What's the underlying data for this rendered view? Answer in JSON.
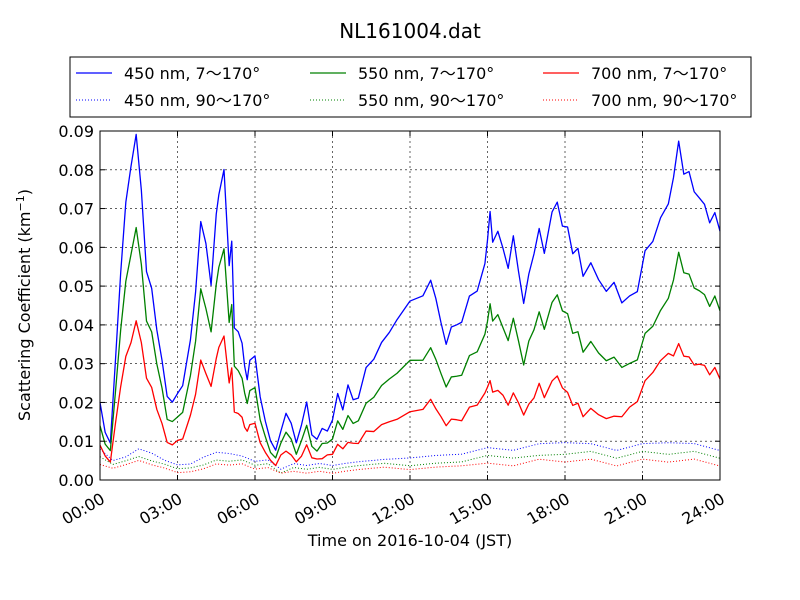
{
  "chart_data": {
    "type": "line",
    "title": "NL161004.dat",
    "xlabel": "Time on 2016-10-04 (JST)",
    "ylabel_main": "Scattering Coefficient (km",
    "ylabel_sup": "−1",
    "ylabel_close": ")",
    "xlim_hours": [
      0,
      24
    ],
    "ylim": [
      0,
      0.09
    ],
    "x_ticks": [
      {
        "hour": 0,
        "label": "00:00"
      },
      {
        "hour": 3,
        "label": "03:00"
      },
      {
        "hour": 6,
        "label": "06:00"
      },
      {
        "hour": 9,
        "label": "09:00"
      },
      {
        "hour": 12,
        "label": "12:00"
      },
      {
        "hour": 15,
        "label": "15:00"
      },
      {
        "hour": 18,
        "label": "18:00"
      },
      {
        "hour": 21,
        "label": "21:00"
      },
      {
        "hour": 24,
        "label": "24:00"
      }
    ],
    "y_ticks": [
      {
        "value": 0.0,
        "label": "0.00"
      },
      {
        "value": 0.01,
        "label": "0.01"
      },
      {
        "value": 0.02,
        "label": "0.02"
      },
      {
        "value": 0.03,
        "label": "0.03"
      },
      {
        "value": 0.04,
        "label": "0.04"
      },
      {
        "value": 0.05,
        "label": "0.05"
      },
      {
        "value": 0.06,
        "label": "0.06"
      },
      {
        "value": 0.07,
        "label": "0.07"
      },
      {
        "value": 0.08,
        "label": "0.08"
      },
      {
        "value": 0.09,
        "label": "0.09"
      }
    ],
    "grid": true,
    "legend_placement": "top, above plot",
    "series": [
      {
        "name": "450 nm, 7～170°",
        "color": "#0000ff",
        "style": "solid",
        "x": [
          0,
          0.2,
          0.4,
          0.6,
          0.8,
          1.0,
          1.2,
          1.4,
          1.6,
          1.8,
          2.0,
          2.2,
          2.4,
          2.6,
          2.8,
          3.0,
          3.2,
          3.5,
          3.7,
          3.9,
          4.1,
          4.3,
          4.5,
          4.6,
          4.8,
          5.0,
          5.1,
          5.2,
          5.35,
          5.5,
          5.6,
          5.7,
          5.8,
          6.0,
          6.2,
          6.4,
          6.6,
          6.8,
          7.0,
          7.2,
          7.4,
          7.6,
          7.8,
          8.0,
          8.2,
          8.4,
          8.6,
          8.8,
          9.0,
          9.2,
          9.4,
          9.6,
          9.8,
          10.0,
          10.3,
          10.6,
          10.9,
          11.2,
          11.5,
          12.0,
          12.5,
          12.8,
          13.0,
          13.2,
          13.4,
          13.6,
          13.8,
          14.0,
          14.3,
          14.6,
          14.9,
          15.0,
          15.1,
          15.2,
          15.4,
          15.6,
          15.8,
          16.0,
          16.2,
          16.4,
          16.6,
          16.8,
          17.0,
          17.2,
          17.5,
          17.7,
          17.9,
          18.1,
          18.3,
          18.5,
          18.7,
          19.0,
          19.3,
          19.6,
          19.9,
          20.2,
          20.5,
          20.8,
          21.1,
          21.4,
          21.7,
          22.0,
          22.2,
          22.4,
          22.6,
          22.8,
          23.0,
          23.2,
          23.4,
          23.6,
          23.8,
          24.0
        ],
        "y": [
          0.02,
          0.012,
          0.01,
          0.03,
          0.055,
          0.07,
          0.082,
          0.089,
          0.074,
          0.055,
          0.048,
          0.04,
          0.03,
          0.022,
          0.02,
          0.022,
          0.025,
          0.035,
          0.05,
          0.065,
          0.062,
          0.05,
          0.068,
          0.075,
          0.078,
          0.057,
          0.06,
          0.04,
          0.038,
          0.035,
          0.03,
          0.025,
          0.032,
          0.031,
          0.022,
          0.015,
          0.01,
          0.008,
          0.012,
          0.018,
          0.014,
          0.01,
          0.014,
          0.02,
          0.012,
          0.01,
          0.014,
          0.012,
          0.016,
          0.022,
          0.018,
          0.025,
          0.02,
          0.022,
          0.028,
          0.032,
          0.035,
          0.038,
          0.042,
          0.045,
          0.049,
          0.05,
          0.048,
          0.04,
          0.035,
          0.04,
          0.039,
          0.042,
          0.046,
          0.05,
          0.055,
          0.062,
          0.07,
          0.06,
          0.066,
          0.058,
          0.056,
          0.062,
          0.054,
          0.046,
          0.052,
          0.06,
          0.063,
          0.06,
          0.068,
          0.072,
          0.066,
          0.064,
          0.06,
          0.058,
          0.054,
          0.055,
          0.052,
          0.049,
          0.05,
          0.047,
          0.046,
          0.05,
          0.058,
          0.062,
          0.068,
          0.07,
          0.08,
          0.085,
          0.081,
          0.078,
          0.075,
          0.073,
          0.07,
          0.068,
          0.067,
          0.066
        ]
      },
      {
        "name": "450 nm, 90～170°",
        "color": "#0000ff",
        "style": "dotted",
        "x": [
          0,
          0.5,
          1.0,
          1.5,
          2.0,
          2.5,
          3.0,
          3.5,
          4.0,
          4.5,
          5.0,
          5.5,
          6.0,
          6.5,
          7.0,
          7.5,
          8.0,
          8.5,
          9.0,
          9.5,
          10.0,
          11.0,
          12.0,
          13.0,
          14.0,
          15.0,
          16.0,
          17.0,
          18.0,
          19.0,
          20.0,
          21.0,
          22.0,
          23.0,
          24.0
        ],
        "y": [
          0.008,
          0.005,
          0.006,
          0.008,
          0.007,
          0.005,
          0.004,
          0.004,
          0.006,
          0.007,
          0.007,
          0.006,
          0.005,
          0.005,
          0.003,
          0.004,
          0.004,
          0.004,
          0.004,
          0.004,
          0.005,
          0.005,
          0.006,
          0.006,
          0.007,
          0.008,
          0.008,
          0.009,
          0.01,
          0.009,
          0.008,
          0.009,
          0.01,
          0.009,
          0.008
        ]
      },
      {
        "name": "550 nm, 7～170°",
        "color": "#008000",
        "style": "solid",
        "x": [
          0,
          0.2,
          0.4,
          0.6,
          0.8,
          1.0,
          1.2,
          1.4,
          1.6,
          1.8,
          2.0,
          2.2,
          2.4,
          2.6,
          2.8,
          3.0,
          3.2,
          3.5,
          3.7,
          3.9,
          4.1,
          4.3,
          4.5,
          4.6,
          4.8,
          5.0,
          5.1,
          5.2,
          5.35,
          5.5,
          5.6,
          5.7,
          5.8,
          6.0,
          6.2,
          6.4,
          6.6,
          6.8,
          7.0,
          7.2,
          7.4,
          7.6,
          7.8,
          8.0,
          8.2,
          8.4,
          8.6,
          8.8,
          9.0,
          9.2,
          9.4,
          9.6,
          9.8,
          10.0,
          10.3,
          10.6,
          10.9,
          11.2,
          11.5,
          12.0,
          12.5,
          12.8,
          13.0,
          13.2,
          13.4,
          13.6,
          13.8,
          14.0,
          14.3,
          14.6,
          14.9,
          15.0,
          15.1,
          15.2,
          15.4,
          15.6,
          15.8,
          16.0,
          16.2,
          16.4,
          16.6,
          16.8,
          17.0,
          17.2,
          17.5,
          17.7,
          17.9,
          18.1,
          18.3,
          18.5,
          18.7,
          19.0,
          19.3,
          19.6,
          19.9,
          20.2,
          20.5,
          20.8,
          21.1,
          21.4,
          21.7,
          22.0,
          22.2,
          22.4,
          22.6,
          22.8,
          23.0,
          23.2,
          23.4,
          23.6,
          23.8,
          24.0
        ],
        "y": [
          0.014,
          0.009,
          0.008,
          0.022,
          0.04,
          0.05,
          0.059,
          0.065,
          0.055,
          0.042,
          0.037,
          0.031,
          0.023,
          0.016,
          0.015,
          0.016,
          0.018,
          0.026,
          0.037,
          0.048,
          0.045,
          0.038,
          0.05,
          0.056,
          0.058,
          0.042,
          0.044,
          0.03,
          0.028,
          0.026,
          0.023,
          0.019,
          0.024,
          0.023,
          0.016,
          0.011,
          0.007,
          0.006,
          0.009,
          0.013,
          0.01,
          0.007,
          0.01,
          0.014,
          0.009,
          0.007,
          0.01,
          0.009,
          0.011,
          0.015,
          0.013,
          0.017,
          0.014,
          0.016,
          0.019,
          0.022,
          0.024,
          0.026,
          0.028,
          0.03,
          0.032,
          0.033,
          0.032,
          0.027,
          0.024,
          0.027,
          0.026,
          0.028,
          0.031,
          0.034,
          0.037,
          0.041,
          0.046,
          0.04,
          0.044,
          0.038,
          0.037,
          0.041,
          0.036,
          0.03,
          0.035,
          0.04,
          0.042,
          0.04,
          0.045,
          0.048,
          0.044,
          0.042,
          0.039,
          0.037,
          0.034,
          0.035,
          0.033,
          0.031,
          0.031,
          0.03,
          0.029,
          0.032,
          0.037,
          0.04,
          0.044,
          0.046,
          0.053,
          0.057,
          0.055,
          0.052,
          0.05,
          0.049,
          0.047,
          0.046,
          0.046,
          0.045
        ]
      },
      {
        "name": "550 nm, 90～170°",
        "color": "#008000",
        "style": "dotted",
        "x": [
          0,
          0.5,
          1.0,
          1.5,
          2.0,
          2.5,
          3.0,
          3.5,
          4.0,
          4.5,
          5.0,
          5.5,
          6.0,
          6.5,
          7.0,
          7.5,
          8.0,
          8.5,
          9.0,
          9.5,
          10.0,
          11.0,
          12.0,
          13.0,
          14.0,
          15.0,
          16.0,
          17.0,
          18.0,
          19.0,
          20.0,
          21.0,
          22.0,
          23.0,
          24.0
        ],
        "y": [
          0.006,
          0.004,
          0.005,
          0.006,
          0.005,
          0.004,
          0.003,
          0.003,
          0.004,
          0.005,
          0.005,
          0.005,
          0.004,
          0.004,
          0.002,
          0.003,
          0.003,
          0.003,
          0.003,
          0.003,
          0.004,
          0.004,
          0.004,
          0.004,
          0.005,
          0.006,
          0.006,
          0.006,
          0.007,
          0.007,
          0.006,
          0.007,
          0.007,
          0.007,
          0.006
        ]
      },
      {
        "name": "700 nm, 7～170°",
        "color": "#ff0000",
        "style": "solid",
        "x": [
          0,
          0.2,
          0.4,
          0.6,
          0.8,
          1.0,
          1.2,
          1.4,
          1.6,
          1.8,
          2.0,
          2.2,
          2.4,
          2.6,
          2.8,
          3.0,
          3.2,
          3.5,
          3.7,
          3.9,
          4.1,
          4.3,
          4.5,
          4.6,
          4.8,
          5.0,
          5.1,
          5.2,
          5.35,
          5.5,
          5.6,
          5.7,
          5.8,
          6.0,
          6.2,
          6.4,
          6.6,
          6.8,
          7.0,
          7.2,
          7.4,
          7.6,
          7.8,
          8.0,
          8.2,
          8.4,
          8.6,
          8.8,
          9.0,
          9.2,
          9.4,
          9.6,
          9.8,
          10.0,
          10.3,
          10.6,
          10.9,
          11.2,
          11.5,
          12.0,
          12.5,
          12.8,
          13.0,
          13.2,
          13.4,
          13.6,
          13.8,
          14.0,
          14.3,
          14.6,
          14.9,
          15.0,
          15.1,
          15.2,
          15.4,
          15.6,
          15.8,
          16.0,
          16.2,
          16.4,
          16.6,
          16.8,
          17.0,
          17.2,
          17.5,
          17.7,
          17.9,
          18.1,
          18.3,
          18.5,
          18.7,
          19.0,
          19.3,
          19.6,
          19.9,
          20.2,
          20.5,
          20.8,
          21.1,
          21.4,
          21.7,
          22.0,
          22.2,
          22.4,
          22.6,
          22.8,
          23.0,
          23.2,
          23.4,
          23.6,
          23.8,
          24.0
        ],
        "y": [
          0.009,
          0.006,
          0.005,
          0.014,
          0.025,
          0.031,
          0.036,
          0.041,
          0.035,
          0.027,
          0.023,
          0.019,
          0.014,
          0.01,
          0.009,
          0.01,
          0.011,
          0.016,
          0.023,
          0.03,
          0.028,
          0.024,
          0.031,
          0.035,
          0.036,
          0.026,
          0.028,
          0.018,
          0.017,
          0.016,
          0.014,
          0.012,
          0.015,
          0.014,
          0.01,
          0.007,
          0.005,
          0.004,
          0.006,
          0.008,
          0.006,
          0.005,
          0.006,
          0.009,
          0.006,
          0.005,
          0.006,
          0.006,
          0.007,
          0.009,
          0.008,
          0.01,
          0.009,
          0.01,
          0.012,
          0.013,
          0.014,
          0.015,
          0.016,
          0.017,
          0.019,
          0.02,
          0.019,
          0.016,
          0.014,
          0.016,
          0.015,
          0.016,
          0.018,
          0.02,
          0.022,
          0.024,
          0.026,
          0.022,
          0.024,
          0.021,
          0.02,
          0.022,
          0.02,
          0.017,
          0.019,
          0.022,
          0.024,
          0.022,
          0.025,
          0.027,
          0.024,
          0.022,
          0.02,
          0.019,
          0.017,
          0.018,
          0.017,
          0.016,
          0.016,
          0.017,
          0.018,
          0.021,
          0.025,
          0.028,
          0.031,
          0.032,
          0.033,
          0.034,
          0.033,
          0.031,
          0.03,
          0.03,
          0.029,
          0.028,
          0.028,
          0.027
        ]
      },
      {
        "name": "700 nm, 90～170°",
        "color": "#ff0000",
        "style": "dotted",
        "x": [
          0,
          0.5,
          1.0,
          1.5,
          2.0,
          2.5,
          3.0,
          3.5,
          4.0,
          4.5,
          5.0,
          5.5,
          6.0,
          6.5,
          7.0,
          7.5,
          8.0,
          8.5,
          9.0,
          9.5,
          10.0,
          11.0,
          12.0,
          13.0,
          14.0,
          15.0,
          16.0,
          17.0,
          18.0,
          19.0,
          20.0,
          21.0,
          22.0,
          23.0,
          24.0
        ],
        "y": [
          0.004,
          0.003,
          0.004,
          0.005,
          0.004,
          0.003,
          0.002,
          0.002,
          0.003,
          0.004,
          0.004,
          0.004,
          0.003,
          0.003,
          0.002,
          0.002,
          0.002,
          0.002,
          0.002,
          0.002,
          0.003,
          0.003,
          0.003,
          0.003,
          0.004,
          0.004,
          0.004,
          0.005,
          0.005,
          0.005,
          0.004,
          0.005,
          0.005,
          0.005,
          0.004
        ]
      }
    ]
  }
}
